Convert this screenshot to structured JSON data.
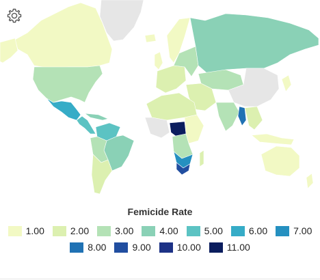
{
  "map": {
    "legend_title": "Femicide Rate",
    "legend": [
      {
        "label": "1.00",
        "color": "#f2f9c4"
      },
      {
        "label": "2.00",
        "color": "#dcf0b0"
      },
      {
        "label": "3.00",
        "color": "#b4e2b6"
      },
      {
        "label": "4.00",
        "color": "#8ad1b6"
      },
      {
        "label": "5.00",
        "color": "#5cc3c3"
      },
      {
        "label": "6.00",
        "color": "#36acc7"
      },
      {
        "label": "7.00",
        "color": "#2590c0"
      },
      {
        "label": "8.00",
        "color": "#2072b4"
      },
      {
        "label": "9.00",
        "color": "#214ea0"
      },
      {
        "label": "10.00",
        "color": "#1d3286"
      },
      {
        "label": "11.00",
        "color": "#0b1d5e"
      }
    ],
    "no_data_color": "#e6e6e6",
    "icon": "gear-icon"
  }
}
